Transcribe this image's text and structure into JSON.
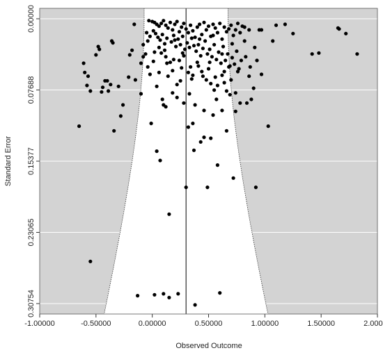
{
  "chart_data": {
    "type": "scatter",
    "subtype": "funnel-plot",
    "title": "",
    "xlabel": "Observed Outcome",
    "ylabel": "Standard Error",
    "xlim": [
      -1.0,
      2.0
    ],
    "ylim": [
      0.30754,
      0.0
    ],
    "y_inverted": true,
    "x_ticks": [
      -1.0,
      -0.5,
      0.0,
      0.5,
      1.0,
      1.5,
      2.0
    ],
    "x_tick_labels": [
      "-1.00000",
      "-0.50000",
      "0.00000",
      "0.50000",
      "1.00000",
      "1.50000",
      "2.00000"
    ],
    "y_ticks": [
      0.0,
      0.07688,
      0.15377,
      0.23065,
      0.30754
    ],
    "y_tick_labels": [
      "0.00000",
      "0.07688",
      "0.15377",
      "0.23065",
      "0.30754"
    ],
    "grid": "horizontal",
    "background_color": "#d3d3d3",
    "funnel_color": "#ffffff",
    "point_color": "#000000",
    "reference_line": 0.3,
    "funnel": {
      "center": 0.3,
      "z": 1.96
    },
    "points": [
      [
        -0.65,
        0.116
      ],
      [
        -0.61,
        0.048
      ],
      [
        -0.6,
        0.058
      ],
      [
        -0.58,
        0.072
      ],
      [
        -0.57,
        0.062
      ],
      [
        -0.55,
        0.078
      ],
      [
        -0.55,
        0.262
      ],
      [
        -0.5,
        0.039
      ],
      [
        -0.48,
        0.03
      ],
      [
        -0.47,
        0.033
      ],
      [
        -0.45,
        0.079
      ],
      [
        -0.44,
        0.074
      ],
      [
        -0.42,
        0.067
      ],
      [
        -0.4,
        0.067
      ],
      [
        -0.39,
        0.078
      ],
      [
        -0.37,
        0.071
      ],
      [
        -0.36,
        0.024
      ],
      [
        -0.35,
        0.026
      ],
      [
        -0.34,
        0.121
      ],
      [
        -0.3,
        0.073
      ],
      [
        -0.28,
        0.105
      ],
      [
        -0.26,
        0.093
      ],
      [
        -0.21,
        0.063
      ],
      [
        -0.2,
        0.039
      ],
      [
        -0.18,
        0.034
      ],
      [
        -0.16,
        0.006
      ],
      [
        -0.15,
        0.066
      ],
      [
        -0.13,
        0.299
      ],
      [
        -0.1,
        0.081
      ],
      [
        -0.08,
        0.028
      ],
      [
        -0.06,
        0.038
      ],
      [
        -0.05,
        0.015
      ],
      [
        -0.04,
        0.052
      ],
      [
        -0.03,
        0.002
      ],
      [
        -0.02,
        0.06
      ],
      [
        -0.01,
        0.113
      ],
      [
        0.01,
        0.046
      ],
      [
        0.02,
        0.298
      ],
      [
        0.04,
        0.143
      ],
      [
        0.07,
        0.153
      ],
      [
        0.09,
        0.087
      ],
      [
        0.1,
        0.093
      ],
      [
        0.1,
        0.297
      ],
      [
        0.13,
        0.048
      ],
      [
        0.15,
        0.211
      ],
      [
        0.15,
        0.301
      ],
      [
        0.18,
        0.08
      ],
      [
        0.2,
        0.023
      ],
      [
        0.22,
        0.071
      ],
      [
        0.23,
        0.297
      ],
      [
        0.25,
        0.067
      ],
      [
        0.27,
        0.037
      ],
      [
        0.28,
        0.04
      ],
      [
        0.3,
        0.182
      ],
      [
        0.32,
        0.117
      ],
      [
        0.33,
        0.081
      ],
      [
        0.35,
        0.065
      ],
      [
        0.36,
        0.113
      ],
      [
        0.37,
        0.142
      ],
      [
        0.38,
        0.309
      ],
      [
        0.4,
        0.047
      ],
      [
        0.42,
        0.022
      ],
      [
        0.43,
        0.133
      ],
      [
        0.45,
        0.062
      ],
      [
        0.46,
        0.128
      ],
      [
        0.49,
        0.182
      ],
      [
        0.5,
        0.054
      ],
      [
        0.52,
        0.129
      ],
      [
        0.54,
        0.018
      ],
      [
        0.55,
        0.077
      ],
      [
        0.57,
        0.087
      ],
      [
        0.58,
        0.158
      ],
      [
        0.6,
        0.296
      ],
      [
        0.62,
        0.038
      ],
      [
        0.64,
        0.069
      ],
      [
        0.66,
        0.121
      ],
      [
        0.68,
        0.052
      ],
      [
        0.69,
        0.082
      ],
      [
        0.71,
        0.042
      ],
      [
        0.72,
        0.172
      ],
      [
        0.74,
        0.08
      ],
      [
        0.76,
        0.057
      ],
      [
        0.78,
        0.091
      ],
      [
        0.8,
        0.008
      ],
      [
        0.82,
        0.024
      ],
      [
        0.84,
        0.091
      ],
      [
        0.86,
        0.062
      ],
      [
        0.88,
        0.087
      ],
      [
        0.9,
        0.075
      ],
      [
        0.92,
        0.182
      ],
      [
        0.95,
        0.012
      ],
      [
        1.03,
        0.116
      ],
      [
        1.07,
        0.024
      ],
      [
        1.1,
        0.007
      ],
      [
        1.18,
        0.006
      ],
      [
        1.25,
        0.016
      ],
      [
        1.42,
        0.038
      ],
      [
        1.48,
        0.037
      ],
      [
        1.65,
        0.01
      ],
      [
        1.66,
        0.011
      ],
      [
        1.72,
        0.016
      ],
      [
        1.82,
        0.038
      ],
      [
        0.0,
        0.003
      ],
      [
        0.02,
        0.004
      ],
      [
        0.04,
        0.006
      ],
      [
        0.06,
        0.008
      ],
      [
        0.08,
        0.005
      ],
      [
        0.1,
        0.002
      ],
      [
        0.12,
        0.007
      ],
      [
        0.14,
        0.01
      ],
      [
        0.16,
        0.004
      ],
      [
        0.18,
        0.012
      ],
      [
        0.2,
        0.006
      ],
      [
        0.22,
        0.003
      ],
      [
        0.24,
        0.014
      ],
      [
        0.26,
        0.009
      ],
      [
        0.28,
        0.005
      ],
      [
        0.3,
        0.011
      ],
      [
        0.32,
        0.015
      ],
      [
        0.34,
        0.007
      ],
      [
        0.36,
        0.013
      ],
      [
        0.38,
        0.02
      ],
      [
        0.4,
        0.009
      ],
      [
        0.42,
        0.006
      ],
      [
        0.44,
        0.017
      ],
      [
        0.46,
        0.004
      ],
      [
        0.48,
        0.012
      ],
      [
        0.5,
        0.008
      ],
      [
        0.52,
        0.019
      ],
      [
        0.54,
        0.006
      ],
      [
        0.56,
        0.01
      ],
      [
        0.58,
        0.015
      ],
      [
        0.6,
        0.005
      ],
      [
        0.62,
        0.022
      ],
      [
        0.64,
        0.009
      ],
      [
        0.66,
        0.014
      ],
      [
        0.68,
        0.011
      ],
      [
        0.7,
        0.007
      ],
      [
        0.72,
        0.018
      ],
      [
        0.74,
        0.012
      ],
      [
        0.76,
        0.005
      ],
      [
        0.78,
        0.015
      ],
      [
        0.82,
        0.009
      ],
      [
        0.86,
        0.012
      ],
      [
        0.01,
        0.013
      ],
      [
        0.03,
        0.016
      ],
      [
        0.05,
        0.02
      ],
      [
        0.07,
        0.023
      ],
      [
        0.09,
        0.017
      ],
      [
        0.11,
        0.027
      ],
      [
        0.13,
        0.021
      ],
      [
        0.17,
        0.025
      ],
      [
        0.19,
        0.018
      ],
      [
        0.21,
        0.03
      ],
      [
        0.23,
        0.022
      ],
      [
        0.25,
        0.028
      ],
      [
        0.27,
        0.019
      ],
      [
        0.29,
        0.033
      ],
      [
        0.31,
        0.026
      ],
      [
        0.33,
        0.031
      ],
      [
        0.35,
        0.021
      ],
      [
        0.37,
        0.029
      ],
      [
        0.39,
        0.035
      ],
      [
        0.41,
        0.028
      ],
      [
        0.43,
        0.04
      ],
      [
        0.45,
        0.032
      ],
      [
        0.47,
        0.024
      ],
      [
        0.49,
        0.038
      ],
      [
        0.51,
        0.033
      ],
      [
        0.53,
        0.041
      ],
      [
        0.55,
        0.028
      ],
      [
        0.57,
        0.044
      ],
      [
        0.59,
        0.036
      ],
      [
        0.61,
        0.048
      ],
      [
        0.63,
        0.03
      ],
      [
        0.65,
        0.045
      ],
      [
        0.67,
        0.038
      ],
      [
        0.69,
        0.051
      ],
      [
        0.71,
        0.027
      ],
      [
        0.73,
        0.049
      ],
      [
        0.75,
        0.035
      ],
      [
        0.77,
        0.054
      ],
      [
        0.79,
        0.045
      ],
      [
        -0.02,
        0.019
      ],
      [
        -0.04,
        0.024
      ],
      [
        0.06,
        0.031
      ],
      [
        0.08,
        0.037
      ],
      [
        0.12,
        0.041
      ],
      [
        0.16,
        0.047
      ],
      [
        0.24,
        0.045
      ],
      [
        0.26,
        0.053
      ],
      [
        0.32,
        0.058
      ],
      [
        0.34,
        0.052
      ],
      [
        0.36,
        0.061
      ],
      [
        0.44,
        0.057
      ],
      [
        0.48,
        0.066
      ],
      [
        0.52,
        0.07
      ],
      [
        0.56,
        0.063
      ],
      [
        0.58,
        0.072
      ],
      [
        0.62,
        0.061
      ],
      [
        0.66,
        0.078
      ],
      [
        0.7,
        0.066
      ],
      [
        0.06,
        0.058
      ],
      [
        0.14,
        0.062
      ],
      [
        0.18,
        0.056
      ],
      [
        0.22,
        0.085
      ],
      [
        0.28,
        0.091
      ],
      [
        0.38,
        0.093
      ],
      [
        0.46,
        0.099
      ],
      [
        0.54,
        0.104
      ],
      [
        0.62,
        0.099
      ],
      [
        0.74,
        0.1
      ],
      [
        0.12,
        0.095
      ],
      [
        -0.08,
        0.041
      ],
      [
        -0.1,
        0.048
      ],
      [
        0.04,
        0.073
      ],
      [
        0.02,
        0.036
      ],
      [
        0.11,
        0.034
      ],
      [
        0.19,
        0.044
      ],
      [
        0.41,
        0.051
      ],
      [
        0.51,
        0.047
      ],
      [
        0.64,
        0.057
      ],
      [
        0.83,
        0.041
      ],
      [
        0.87,
        0.052
      ],
      [
        0.91,
        0.031
      ],
      [
        0.93,
        0.045
      ],
      [
        0.97,
        0.012
      ],
      [
        0.97,
        0.06
      ]
    ]
  }
}
